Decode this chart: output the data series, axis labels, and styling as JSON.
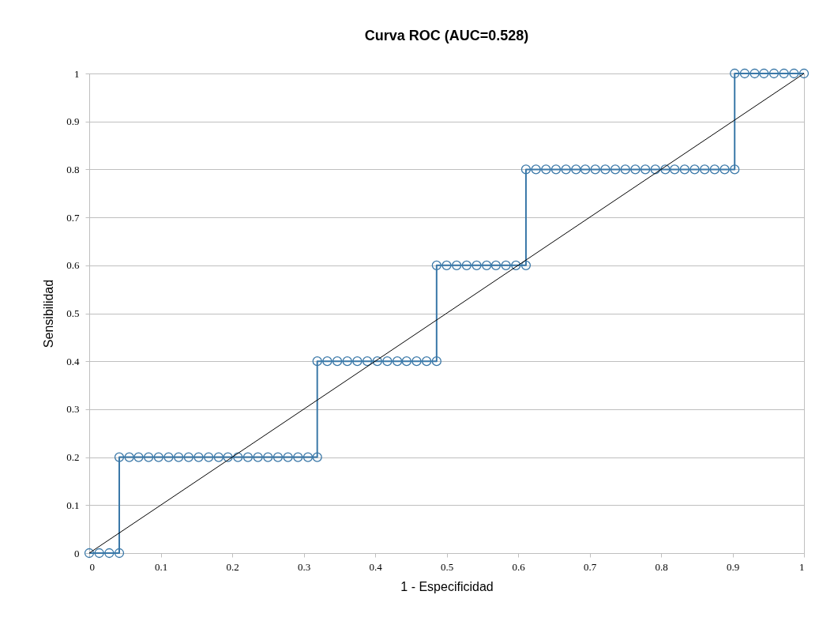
{
  "chart_data": {
    "type": "line",
    "title": "Curva ROC (AUC=0.528)",
    "xlabel": "1 - Especificidad",
    "ylabel": "Sensibilidad",
    "xlim": [
      0,
      1
    ],
    "ylim": [
      0,
      1
    ],
    "xticks": [
      0,
      0.1,
      0.2,
      0.3,
      0.4,
      0.5,
      0.6,
      0.7,
      0.8,
      0.9,
      1
    ],
    "yticks": [
      0,
      0.1,
      0.2,
      0.3,
      0.4,
      0.5,
      0.6,
      0.7,
      0.8,
      0.9,
      1
    ],
    "grid": "y",
    "marker": "circle",
    "line_style": "solid",
    "series": [
      {
        "color": "#3a78a8",
        "x": [
          0,
          0.014,
          0.028,
          0.042,
          0.042,
          0.056,
          0.069,
          0.083,
          0.097,
          0.111,
          0.125,
          0.139,
          0.153,
          0.167,
          0.181,
          0.194,
          0.208,
          0.222,
          0.236,
          0.25,
          0.264,
          0.278,
          0.292,
          0.306,
          0.319,
          0.319,
          0.333,
          0.347,
          0.361,
          0.375,
          0.389,
          0.403,
          0.417,
          0.431,
          0.444,
          0.458,
          0.472,
          0.486,
          0.486,
          0.5,
          0.514,
          0.528,
          0.542,
          0.556,
          0.569,
          0.583,
          0.597,
          0.611,
          0.611,
          0.625,
          0.639,
          0.653,
          0.667,
          0.681,
          0.694,
          0.708,
          0.722,
          0.736,
          0.75,
          0.764,
          0.778,
          0.792,
          0.806,
          0.819,
          0.833,
          0.847,
          0.861,
          0.875,
          0.889,
          0.903,
          0.903,
          0.917,
          0.931,
          0.944,
          0.958,
          0.972,
          0.986,
          1
        ],
        "values": [
          0,
          0,
          0,
          0,
          0.2,
          0.2,
          0.2,
          0.2,
          0.2,
          0.2,
          0.2,
          0.2,
          0.2,
          0.2,
          0.2,
          0.2,
          0.2,
          0.2,
          0.2,
          0.2,
          0.2,
          0.2,
          0.2,
          0.2,
          0.2,
          0.4,
          0.4,
          0.4,
          0.4,
          0.4,
          0.4,
          0.4,
          0.4,
          0.4,
          0.4,
          0.4,
          0.4,
          0.4,
          0.6,
          0.6,
          0.6,
          0.6,
          0.6,
          0.6,
          0.6,
          0.6,
          0.6,
          0.6,
          0.8,
          0.8,
          0.8,
          0.8,
          0.8,
          0.8,
          0.8,
          0.8,
          0.8,
          0.8,
          0.8,
          0.8,
          0.8,
          0.8,
          0.8,
          0.8,
          0.8,
          0.8,
          0.8,
          0.8,
          0.8,
          0.8,
          1,
          1,
          1,
          1,
          1,
          1,
          1,
          1
        ]
      },
      {
        "color": "#000000",
        "marker": "none",
        "x": [
          0,
          1
        ],
        "values": [
          0,
          1
        ]
      }
    ]
  }
}
